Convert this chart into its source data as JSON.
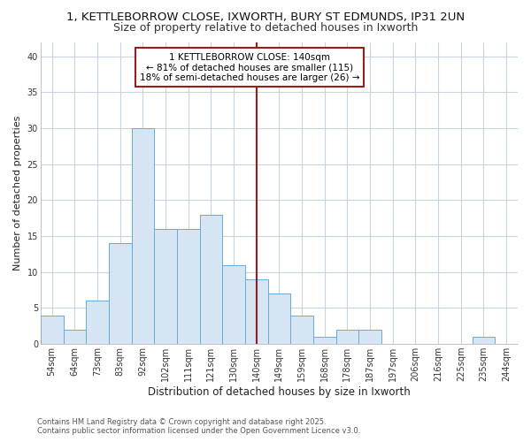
{
  "title1": "1, KETTLEBORROW CLOSE, IXWORTH, BURY ST EDMUNDS, IP31 2UN",
  "title2": "Size of property relative to detached houses in Ixworth",
  "xlabel": "Distribution of detached houses by size in Ixworth",
  "ylabel": "Number of detached properties",
  "categories": [
    "54sqm",
    "64sqm",
    "73sqm",
    "83sqm",
    "92sqm",
    "102sqm",
    "111sqm",
    "121sqm",
    "130sqm",
    "140sqm",
    "149sqm",
    "159sqm",
    "168sqm",
    "178sqm",
    "187sqm",
    "197sqm",
    "206sqm",
    "216sqm",
    "225sqm",
    "235sqm",
    "244sqm"
  ],
  "values": [
    4,
    2,
    6,
    14,
    30,
    16,
    16,
    18,
    11,
    9,
    7,
    4,
    1,
    2,
    2,
    0,
    0,
    0,
    0,
    1,
    0
  ],
  "bar_color": "#d6e5f3",
  "bar_edge_color": "#6aaad4",
  "vline_index": 9,
  "vline_color": "#9b1c1c",
  "annotation_text": "1 KETTLEBORROW CLOSE: 140sqm\n← 81% of detached houses are smaller (115)\n18% of semi-detached houses are larger (26) →",
  "annotation_box_color": "#ffffff",
  "annotation_box_edge": "#9b1c1c",
  "ylim": [
    0,
    42
  ],
  "yticks": [
    0,
    5,
    10,
    15,
    20,
    25,
    30,
    35,
    40
  ],
  "bg_color": "#ffffff",
  "plot_bg_color": "#ffffff",
  "grid_color": "#c8d4e0",
  "footer_text": "Contains HM Land Registry data © Crown copyright and database right 2025.\nContains public sector information licensed under the Open Government Licence v3.0.",
  "title1_fontsize": 9.5,
  "title2_fontsize": 9,
  "xlabel_fontsize": 8.5,
  "ylabel_fontsize": 8,
  "tick_fontsize": 7,
  "annotation_fontsize": 7.5,
  "footer_fontsize": 6
}
